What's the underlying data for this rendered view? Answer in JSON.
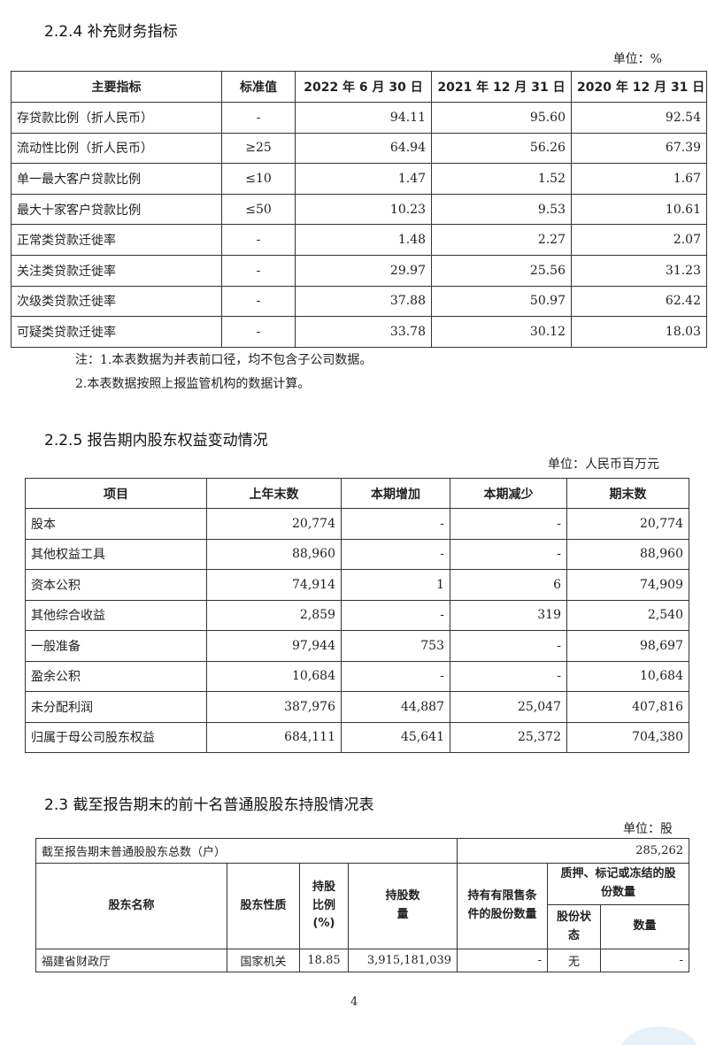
{
  "sec1": {
    "title": "2.2.4 补充财务指标",
    "unit": "单位：%",
    "headers": [
      "主要指标",
      "标准值",
      "2022 年 6 月 30 日",
      "2021 年 12 月 31 日",
      "2020 年 12 月 31 日"
    ],
    "rows": [
      [
        "存贷款比例（折人民币）",
        "-",
        "94.11",
        "95.60",
        "92.54"
      ],
      [
        "流动性比例（折人民币）",
        "≥25",
        "64.94",
        "56.26",
        "67.39"
      ],
      [
        "单一最大客户贷款比例",
        "≤10",
        "1.47",
        "1.52",
        "1.67"
      ],
      [
        "最大十家客户贷款比例",
        "≤50",
        "10.23",
        "9.53",
        "10.61"
      ],
      [
        "正常类贷款迁徙率",
        "-",
        "1.48",
        "2.27",
        "2.07"
      ],
      [
        "关注类贷款迁徙率",
        "-",
        "29.97",
        "25.56",
        "31.23"
      ],
      [
        "次级类贷款迁徙率",
        "-",
        "37.88",
        "50.97",
        "62.42"
      ],
      [
        "可疑类贷款迁徙率",
        "-",
        "33.78",
        "30.12",
        "18.03"
      ]
    ],
    "notes": [
      "注：1.本表数据为并表前口径，均不包含子公司数据。",
      "2.本表数据按照上报监管机构的数据计算。"
    ]
  },
  "sec2": {
    "title": "2.2.5 报告期内股东权益变动情况",
    "unit": "单位：人民币百万元",
    "headers": [
      "项目",
      "上年末数",
      "本期增加",
      "本期减少",
      "期末数"
    ],
    "rows": [
      [
        "股本",
        "20,774",
        "-",
        "-",
        "20,774"
      ],
      [
        "其他权益工具",
        "88,960",
        "-",
        "-",
        "88,960"
      ],
      [
        "资本公积",
        "74,914",
        "1",
        "6",
        "74,909"
      ],
      [
        "其他综合收益",
        "2,859",
        "-",
        "319",
        "2,540"
      ],
      [
        "一般准备",
        "97,944",
        "753",
        "-",
        "98,697"
      ],
      [
        "盈余公积",
        "10,684",
        "-",
        "-",
        "10,684"
      ],
      [
        "未分配利润",
        "387,976",
        "44,887",
        "25,047",
        "407,816"
      ],
      [
        "归属于母公司股东权益",
        "684,111",
        "45,641",
        "25,372",
        "704,380"
      ]
    ]
  },
  "sec3": {
    "title": "2.3 截至报告期末的前十名普通股股东持股情况表",
    "unit": "单位：股",
    "total_label": "截至报告期末普通股股东总数（户）",
    "total_value": "285,262",
    "headers": {
      "name": "股东名称",
      "nature": "股东性质",
      "ratio": "持股比例(%)",
      "shares": "持股数量",
      "restricted": "持有有限售条件的股份数量",
      "pledge": "质押、标记或冻结的股份数量",
      "status": "股份状态",
      "amount": "数量"
    },
    "rows": [
      [
        "福建省财政厅",
        "国家机关",
        "18.85",
        "3,915,181,039",
        "-",
        "无",
        "-"
      ]
    ]
  },
  "page_number": "4"
}
